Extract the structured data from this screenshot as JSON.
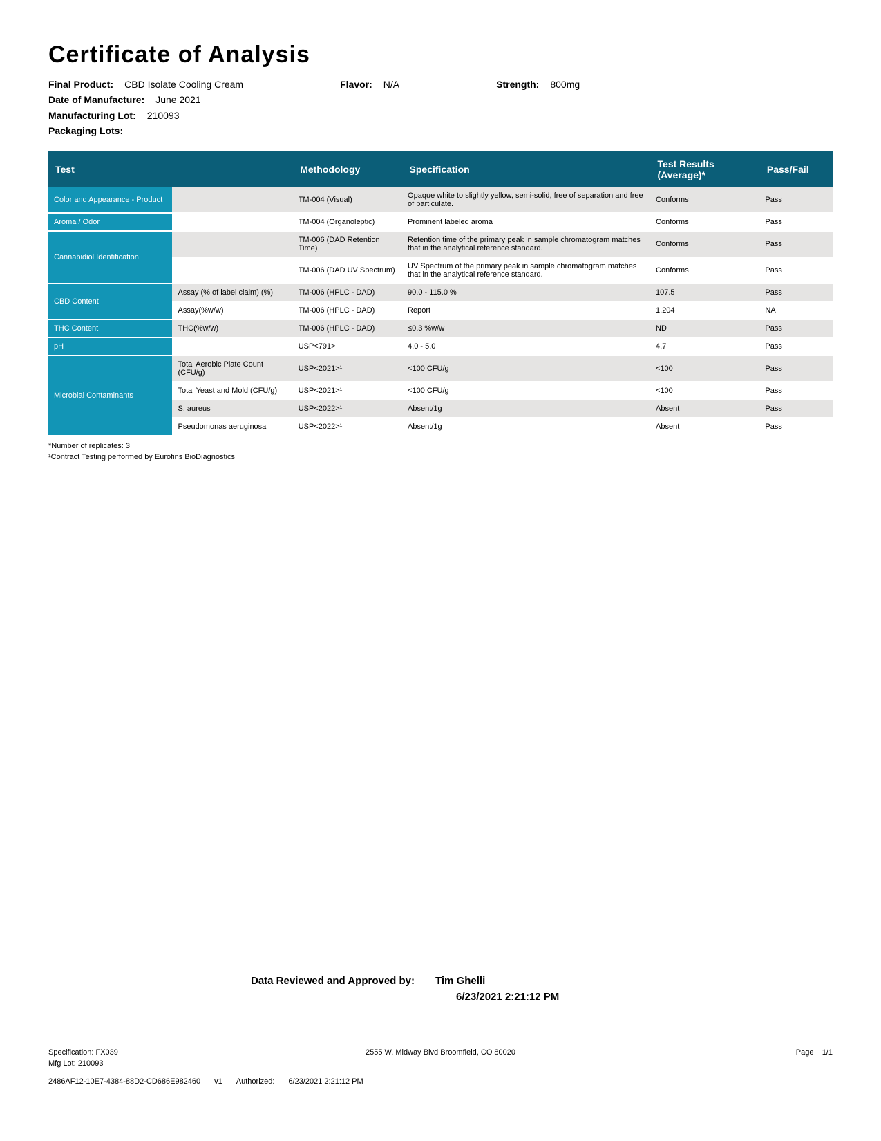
{
  "title": "Certificate of Analysis",
  "meta": {
    "final_product_label": "Final Product:",
    "final_product": "CBD Isolate Cooling Cream",
    "flavor_label": "Flavor:",
    "flavor": "N/A",
    "strength_label": "Strength:",
    "strength": "800mg",
    "date_mfg_label": "Date of Manufacture:",
    "date_mfg": "June 2021",
    "mfg_lot_label": "Manufacturing Lot:",
    "mfg_lot": "210093",
    "pkg_lots_label": "Packaging Lots:",
    "pkg_lots": ""
  },
  "columns": {
    "test": "Test",
    "methodology": "Methodology",
    "specification": "Specification",
    "results": "Test Results (Average)*",
    "passfail": "Pass/Fail"
  },
  "rows": [
    {
      "test": "Color and Appearance - Product",
      "test_rowspan": 1,
      "label": "",
      "label_bg": "light",
      "method": "TM-004 (Visual)",
      "spec": "Opaque white to slightly yellow, semi-solid, free of separation and free of particulate.",
      "result": "Conforms",
      "pass": "Pass",
      "row_bg": "light"
    },
    {
      "test": "Aroma / Odor",
      "test_rowspan": 1,
      "label": "",
      "label_bg": "white",
      "method": "TM-004 (Organoleptic)",
      "spec": "Prominent labeled aroma",
      "result": "Conforms",
      "pass": "Pass",
      "row_bg": "white"
    },
    {
      "test": "Cannabidiol Identification",
      "test_rowspan": 2,
      "label": "",
      "label_bg": "light",
      "method": "TM-006 (DAD Retention Time)",
      "spec": "Retention time of the primary peak in sample chromatogram matches that in the analytical reference standard.",
      "result": "Conforms",
      "pass": "Pass",
      "row_bg": "light"
    },
    {
      "label": "",
      "label_bg": "white",
      "method": "TM-006 (DAD UV Spectrum)",
      "spec": "UV Spectrum of the primary peak in sample chromatogram matches that in the analytical reference standard.",
      "result": "Conforms",
      "pass": "Pass",
      "row_bg": "white"
    },
    {
      "test": "CBD Content",
      "test_rowspan": 2,
      "label": "Assay (% of label claim) (%)",
      "label_bg": "light",
      "method": "TM-006 (HPLC - DAD)",
      "spec": "90.0 - 115.0 %",
      "result": "107.5",
      "pass": "Pass",
      "row_bg": "light"
    },
    {
      "label": "Assay(%w/w)",
      "label_bg": "white",
      "method": "TM-006 (HPLC - DAD)",
      "spec": "Report",
      "result": "1.204",
      "pass": "NA",
      "row_bg": "white"
    },
    {
      "test": "THC Content",
      "test_rowspan": 1,
      "label": "THC(%w/w)",
      "label_bg": "light",
      "method": "TM-006 (HPLC - DAD)",
      "spec": "≤0.3 %w/w",
      "result": "ND",
      "pass": "Pass",
      "row_bg": "light"
    },
    {
      "test": "pH",
      "test_rowspan": 1,
      "label": "",
      "label_bg": "white",
      "method": "USP<791>",
      "spec": "4.0 - 5.0",
      "result": "4.7",
      "pass": "Pass",
      "row_bg": "white"
    },
    {
      "test": "Microbial Contaminants",
      "test_rowspan": 4,
      "label": "Total Aerobic Plate Count (CFU/g)",
      "label_bg": "light",
      "method": "USP<2021>¹",
      "spec": "<100 CFU/g",
      "result": "<100",
      "pass": "Pass",
      "row_bg": "light"
    },
    {
      "label": "Total Yeast and Mold (CFU/g)",
      "label_bg": "white",
      "method": "USP<2021>¹",
      "spec": "<100 CFU/g",
      "result": "<100",
      "pass": "Pass",
      "row_bg": "white"
    },
    {
      "label": "S. aureus",
      "label_bg": "light",
      "method": "USP<2022>¹",
      "spec": "Absent/1g",
      "result": "Absent",
      "pass": "Pass",
      "row_bg": "light"
    },
    {
      "label": "Pseudomonas aeruginosa",
      "label_bg": "white",
      "method": "USP<2022>¹",
      "spec": "Absent/1g",
      "result": "Absent",
      "pass": "Pass",
      "row_bg": "white"
    }
  ],
  "footnotes": {
    "note1": "*Number of replicates: 3",
    "note2": "¹Contract Testing performed by Eurofins BioDiagnostics"
  },
  "approval": {
    "label": "Data Reviewed and Approved by:",
    "name": "Tim Ghelli",
    "date": "6/23/2021 2:21:12 PM"
  },
  "footer": {
    "spec_label": "Specification:",
    "spec": "FX039",
    "address": "2555 W. Midway Blvd Broomfield, CO 80020",
    "page_label": "Page",
    "page": "1/1",
    "mfg_label": "Mfg Lot:",
    "mfg": "210093",
    "hash": "2486AF12-10E7-4384-88D2-CD686E982460",
    "version": "v1",
    "auth_label": "Authorized:",
    "auth_date": "6/23/2021 2:21:12 PM"
  },
  "colors": {
    "header_bg": "#0b5e78",
    "category_bg": "#1295b6",
    "row_light": "#e5e4e3",
    "row_white": "#ffffff",
    "text": "#000000"
  }
}
